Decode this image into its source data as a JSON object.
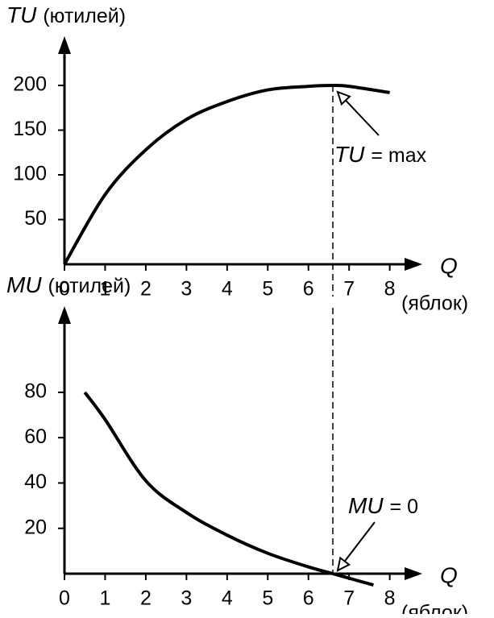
{
  "chart_data": [
    {
      "type": "line",
      "ylabel_symbol": "TU",
      "ylabel_unit": "(ютилей)",
      "xlabel_symbol": "Q",
      "xlabel_unit": "(яблок)",
      "x": [
        0,
        1,
        2,
        3,
        4,
        5,
        6,
        6.6,
        7,
        8
      ],
      "values": [
        0,
        78,
        128,
        162,
        182,
        195,
        199,
        200,
        199,
        192
      ],
      "color": "#000000",
      "xlim": [
        0,
        8.8
      ],
      "xticks": [
        0,
        1,
        2,
        3,
        4,
        5,
        6,
        7,
        8
      ],
      "ylim": [
        0,
        255
      ],
      "yticks": [
        50,
        100,
        150,
        200
      ],
      "annotation": {
        "symbol": "TU",
        "text": "= max",
        "x": 6.6
      }
    },
    {
      "type": "line",
      "ylabel_symbol": "MU",
      "ylabel_unit": "(ютилей)",
      "xlabel_symbol": "Q",
      "xlabel_unit": "(яблок)",
      "x": [
        0.5,
        1,
        2,
        3,
        4,
        5,
        6,
        6.6,
        7,
        7.6
      ],
      "values": [
        80,
        68,
        41,
        27,
        17,
        9,
        3,
        0,
        -2,
        -5
      ],
      "color": "#000000",
      "xlim": [
        0,
        8.8
      ],
      "xticks": [
        0,
        1,
        2,
        3,
        4,
        5,
        6,
        7,
        8
      ],
      "ylim": [
        0,
        118
      ],
      "yticks": [
        20,
        40,
        60,
        80
      ],
      "annotation": {
        "symbol": "MU",
        "text": "= 0",
        "x": 6.6
      }
    }
  ]
}
